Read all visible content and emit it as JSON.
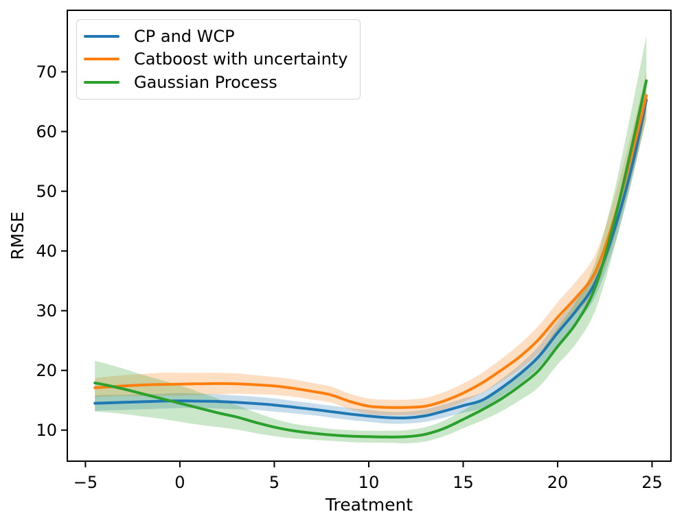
{
  "figure": {
    "background": "#ffffff",
    "text_color": "#000000",
    "spine_color": "#000000"
  },
  "chart_data": {
    "type": "line",
    "title": "",
    "xlabel": "Treatment",
    "ylabel": "RMSE",
    "xlim": [
      -5.96,
      26.0
    ],
    "ylim": [
      4.8,
      80.3
    ],
    "xticks": [
      -5,
      0,
      5,
      10,
      15,
      20,
      25
    ],
    "xtick_labels": [
      "−5",
      "0",
      "5",
      "10",
      "15",
      "20",
      "25"
    ],
    "yticks": [
      10,
      20,
      30,
      40,
      50,
      60,
      70
    ],
    "ytick_labels": [
      "10",
      "20",
      "30",
      "40",
      "50",
      "60",
      "70"
    ],
    "grid": false,
    "band_opacity": 0.25,
    "legend": {
      "position": "upper-left",
      "frame": true
    },
    "x": [
      -4.5,
      -4,
      -3,
      -2,
      -1,
      0,
      1,
      2,
      3,
      4,
      5,
      6,
      7,
      8,
      9,
      10,
      11,
      12,
      13,
      14,
      15,
      16,
      17,
      18,
      19,
      20,
      21,
      22,
      23,
      24,
      24.7
    ],
    "series": [
      {
        "name": "CP and WCP",
        "color": "#1f77b4",
        "values": [
          14.5,
          14.55,
          14.65,
          14.75,
          14.85,
          14.9,
          14.85,
          14.8,
          14.65,
          14.45,
          14.2,
          13.85,
          13.5,
          13.1,
          12.7,
          12.35,
          12.1,
          12.05,
          12.4,
          13.2,
          14.1,
          15.0,
          17.0,
          19.4,
          22.3,
          26.3,
          30.1,
          34.8,
          43.5,
          55.0,
          65.3
        ],
        "band_upper": [
          15.8,
          15.9,
          15.9,
          16.0,
          16.1,
          16.2,
          16.1,
          16.0,
          15.8,
          15.6,
          15.3,
          14.9,
          14.5,
          14.1,
          13.7,
          13.4,
          13.1,
          13.1,
          13.5,
          14.3,
          15.3,
          16.3,
          18.5,
          21.0,
          24.1,
          28.3,
          32.3,
          37.2,
          46.1,
          57.4,
          67.1
        ],
        "band_lower": [
          13.2,
          13.3,
          13.4,
          13.5,
          13.6,
          13.7,
          13.7,
          13.6,
          13.5,
          13.4,
          13.1,
          12.8,
          12.5,
          12.1,
          11.7,
          11.4,
          11.1,
          11.1,
          11.4,
          12.1,
          12.9,
          13.7,
          15.6,
          17.8,
          20.5,
          24.3,
          27.9,
          32.4,
          40.9,
          52.6,
          63.5
        ]
      },
      {
        "name": "Catboost with uncertainty",
        "color": "#ff7f0e",
        "values": [
          17.1,
          17.2,
          17.4,
          17.55,
          17.65,
          17.7,
          17.75,
          17.8,
          17.75,
          17.6,
          17.4,
          17.0,
          16.5,
          15.9,
          14.8,
          14.0,
          13.8,
          13.8,
          14.0,
          14.9,
          16.2,
          17.9,
          20.0,
          22.3,
          25.2,
          28.9,
          32.3,
          36.5,
          45.5,
          57.0,
          66.0
        ],
        "band_upper": [
          18.7,
          18.9,
          19.2,
          19.4,
          19.6,
          19.6,
          19.6,
          19.6,
          19.5,
          19.2,
          18.9,
          18.5,
          17.9,
          17.3,
          16.1,
          15.3,
          15.1,
          15.1,
          15.4,
          16.4,
          17.8,
          19.6,
          21.9,
          24.4,
          27.5,
          31.4,
          35.0,
          39.5,
          48.9,
          60.8,
          70.0
        ],
        "band_lower": [
          15.5,
          15.6,
          15.7,
          15.7,
          15.8,
          15.8,
          15.9,
          16.0,
          16.1,
          16.0,
          15.9,
          15.6,
          15.1,
          14.6,
          13.5,
          12.7,
          12.5,
          12.5,
          12.7,
          13.5,
          14.7,
          16.2,
          18.1,
          20.2,
          22.9,
          26.4,
          29.6,
          33.5,
          42.1,
          53.2,
          62.0
        ]
      },
      {
        "name": "Gaussian Process",
        "color": "#2ca02c",
        "values": [
          17.9,
          17.6,
          16.9,
          16.1,
          15.3,
          14.5,
          13.7,
          12.9,
          12.2,
          11.3,
          10.5,
          9.9,
          9.5,
          9.2,
          9.0,
          8.9,
          8.85,
          8.9,
          9.3,
          10.3,
          11.8,
          13.4,
          15.2,
          17.4,
          20.0,
          24.0,
          28.0,
          34.0,
          45.0,
          58.5,
          68.5
        ],
        "band_upper": [
          21.6,
          21.2,
          20.3,
          19.3,
          18.4,
          17.5,
          16.4,
          15.3,
          14.2,
          13.0,
          11.9,
          11.1,
          10.6,
          10.2,
          10.0,
          9.9,
          9.9,
          10.0,
          10.5,
          11.6,
          13.3,
          15.2,
          17.3,
          19.8,
          22.8,
          27.2,
          31.7,
          38.2,
          50.0,
          65.0,
          76.0
        ],
        "band_lower": [
          13.1,
          13.0,
          12.7,
          12.3,
          11.9,
          11.4,
          10.9,
          10.5,
          10.1,
          9.5,
          9.0,
          8.6,
          8.4,
          8.2,
          8.0,
          7.9,
          7.9,
          7.8,
          8.1,
          9.0,
          10.3,
          11.6,
          13.1,
          15.0,
          17.2,
          21.0,
          24.6,
          30.1,
          40.5,
          53.0,
          62.0
        ]
      }
    ]
  }
}
